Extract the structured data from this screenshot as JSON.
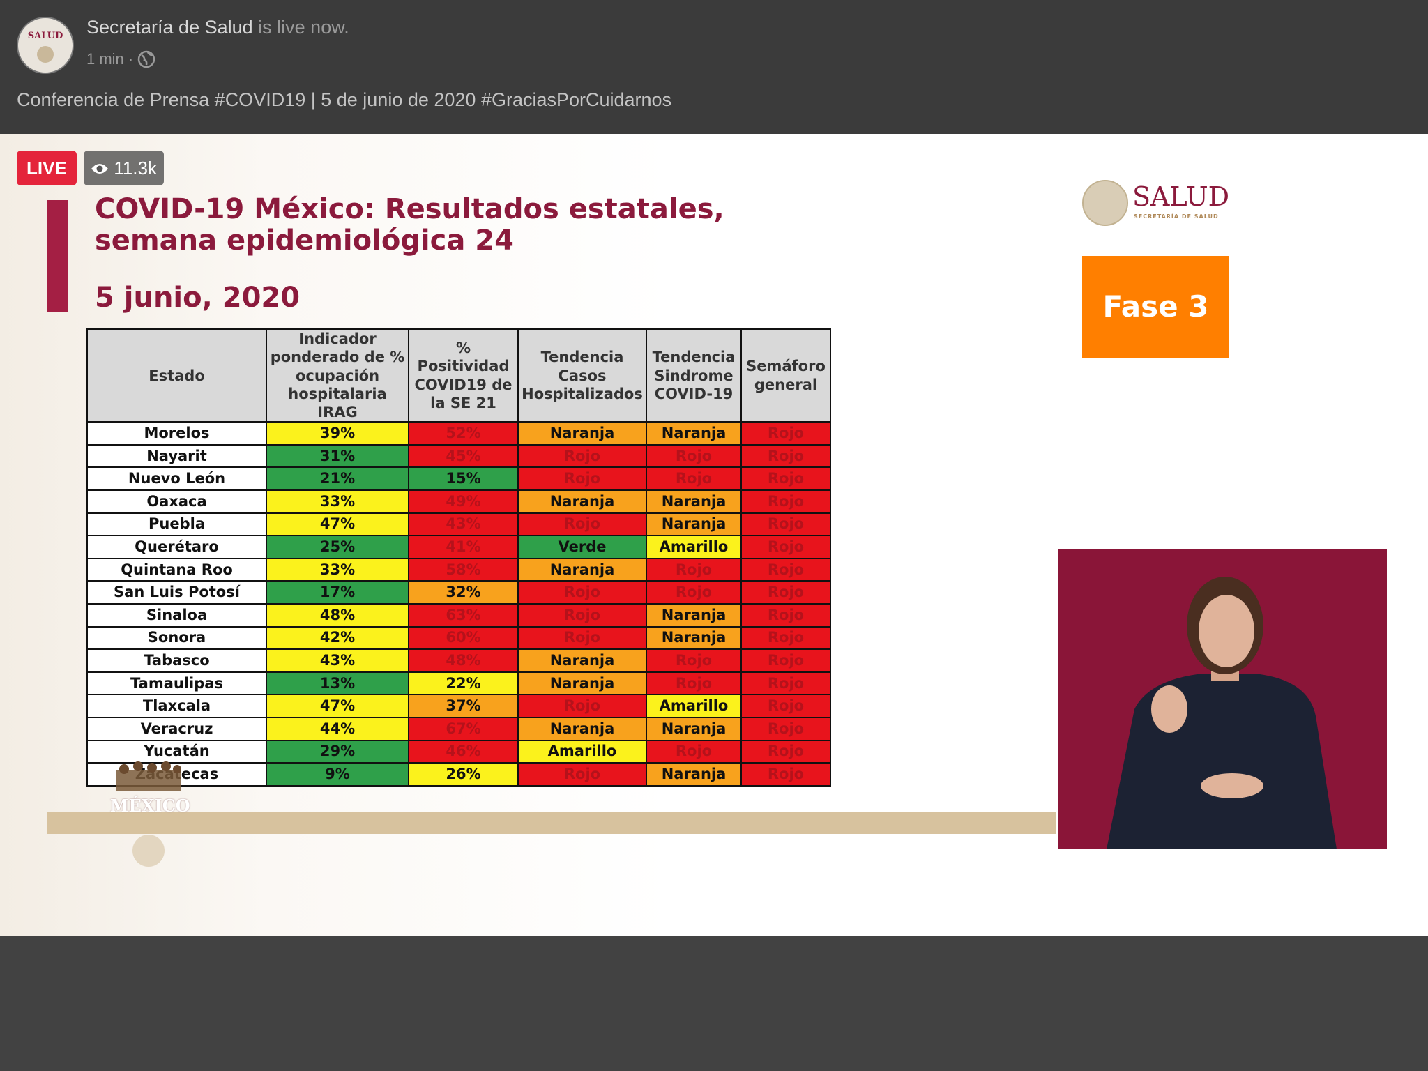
{
  "header": {
    "page_name": "Secretaría de Salud",
    "status": "is live now.",
    "time": "1 min",
    "separator": "·",
    "description": "Conferencia de Prensa #COVID19 | 5 de junio de 2020 #GraciasPorCuidarnos",
    "avatar_text": "SALUD"
  },
  "video": {
    "live_badge": "LIVE",
    "viewers": "11.3k",
    "slide": {
      "title": "COVID-19 México: Resultados estatales, semana epidemiológica 24",
      "date": "5 junio, 2020",
      "logo_title": "SALUD",
      "logo_subtitle": "SECRETARÍA DE SALUD",
      "phase": "Fase 3",
      "footer_logo": "MÉXICO",
      "table": {
        "columns": [
          "Estado",
          "Indicador ponderado de % ocupación hospitalaria IRAG",
          "% Positividad COVID19 de la SE 21",
          "Tendencia Casos Hospitalizados",
          "Tendencia Sindrome COVID-19",
          "Semáforo general"
        ],
        "rows": [
          [
            {
              "text": "Morelos"
            },
            {
              "text": "39%",
              "color": "yellow"
            },
            {
              "text": "52%",
              "color": "red"
            },
            {
              "text": "Naranja",
              "color": "orange"
            },
            {
              "text": "Naranja",
              "color": "orange"
            },
            {
              "text": "Rojo",
              "color": "red"
            }
          ],
          [
            {
              "text": "Nayarit"
            },
            {
              "text": "31%",
              "color": "green"
            },
            {
              "text": "45%",
              "color": "red"
            },
            {
              "text": "Rojo",
              "color": "red"
            },
            {
              "text": "Rojo",
              "color": "red"
            },
            {
              "text": "Rojo",
              "color": "red"
            }
          ],
          [
            {
              "text": "Nuevo León"
            },
            {
              "text": "21%",
              "color": "green"
            },
            {
              "text": "15%",
              "color": "green"
            },
            {
              "text": "Rojo",
              "color": "red"
            },
            {
              "text": "Rojo",
              "color": "red"
            },
            {
              "text": "Rojo",
              "color": "red"
            }
          ],
          [
            {
              "text": "Oaxaca"
            },
            {
              "text": "33%",
              "color": "yellow"
            },
            {
              "text": "49%",
              "color": "red"
            },
            {
              "text": "Naranja",
              "color": "orange"
            },
            {
              "text": "Naranja",
              "color": "orange"
            },
            {
              "text": "Rojo",
              "color": "red"
            }
          ],
          [
            {
              "text": "Puebla"
            },
            {
              "text": "47%",
              "color": "yellow"
            },
            {
              "text": "43%",
              "color": "red"
            },
            {
              "text": "Rojo",
              "color": "red"
            },
            {
              "text": "Naranja",
              "color": "orange"
            },
            {
              "text": "Rojo",
              "color": "red"
            }
          ],
          [
            {
              "text": "Querétaro"
            },
            {
              "text": "25%",
              "color": "green"
            },
            {
              "text": "41%",
              "color": "red"
            },
            {
              "text": "Verde",
              "color": "green"
            },
            {
              "text": "Amarillo",
              "color": "yellow"
            },
            {
              "text": "Rojo",
              "color": "red"
            }
          ],
          [
            {
              "text": "Quintana Roo"
            },
            {
              "text": "33%",
              "color": "yellow"
            },
            {
              "text": "58%",
              "color": "red"
            },
            {
              "text": "Naranja",
              "color": "orange"
            },
            {
              "text": "Rojo",
              "color": "red"
            },
            {
              "text": "Rojo",
              "color": "red"
            }
          ],
          [
            {
              "text": "San Luis Potosí"
            },
            {
              "text": "17%",
              "color": "green"
            },
            {
              "text": "32%",
              "color": "orange"
            },
            {
              "text": "Rojo",
              "color": "red"
            },
            {
              "text": "Rojo",
              "color": "red"
            },
            {
              "text": "Rojo",
              "color": "red"
            }
          ],
          [
            {
              "text": "Sinaloa"
            },
            {
              "text": "48%",
              "color": "yellow"
            },
            {
              "text": "63%",
              "color": "red"
            },
            {
              "text": "Rojo",
              "color": "red"
            },
            {
              "text": "Naranja",
              "color": "orange"
            },
            {
              "text": "Rojo",
              "color": "red"
            }
          ],
          [
            {
              "text": "Sonora"
            },
            {
              "text": "42%",
              "color": "yellow"
            },
            {
              "text": "60%",
              "color": "red"
            },
            {
              "text": "Rojo",
              "color": "red"
            },
            {
              "text": "Naranja",
              "color": "orange"
            },
            {
              "text": "Rojo",
              "color": "red"
            }
          ],
          [
            {
              "text": "Tabasco"
            },
            {
              "text": "43%",
              "color": "yellow"
            },
            {
              "text": "48%",
              "color": "red"
            },
            {
              "text": "Naranja",
              "color": "orange"
            },
            {
              "text": "Rojo",
              "color": "red"
            },
            {
              "text": "Rojo",
              "color": "red"
            }
          ],
          [
            {
              "text": "Tamaulipas"
            },
            {
              "text": "13%",
              "color": "green"
            },
            {
              "text": "22%",
              "color": "yellow"
            },
            {
              "text": "Naranja",
              "color": "orange"
            },
            {
              "text": "Rojo",
              "color": "red"
            },
            {
              "text": "Rojo",
              "color": "red"
            }
          ],
          [
            {
              "text": "Tlaxcala"
            },
            {
              "text": "47%",
              "color": "yellow"
            },
            {
              "text": "37%",
              "color": "orange"
            },
            {
              "text": "Rojo",
              "color": "red"
            },
            {
              "text": "Amarillo",
              "color": "yellow"
            },
            {
              "text": "Rojo",
              "color": "red"
            }
          ],
          [
            {
              "text": "Veracruz"
            },
            {
              "text": "44%",
              "color": "yellow"
            },
            {
              "text": "67%",
              "color": "red"
            },
            {
              "text": "Naranja",
              "color": "orange"
            },
            {
              "text": "Naranja",
              "color": "orange"
            },
            {
              "text": "Rojo",
              "color": "red"
            }
          ],
          [
            {
              "text": "Yucatán"
            },
            {
              "text": "29%",
              "color": "green"
            },
            {
              "text": "46%",
              "color": "red"
            },
            {
              "text": "Amarillo",
              "color": "yellow"
            },
            {
              "text": "Rojo",
              "color": "red"
            },
            {
              "text": "Rojo",
              "color": "red"
            }
          ],
          [
            {
              "text": "Zacatecas"
            },
            {
              "text": "9%",
              "color": "green"
            },
            {
              "text": "26%",
              "color": "yellow"
            },
            {
              "text": "Rojo",
              "color": "red"
            },
            {
              "text": "Naranja",
              "color": "orange"
            },
            {
              "text": "Rojo",
              "color": "red"
            }
          ]
        ]
      }
    }
  }
}
